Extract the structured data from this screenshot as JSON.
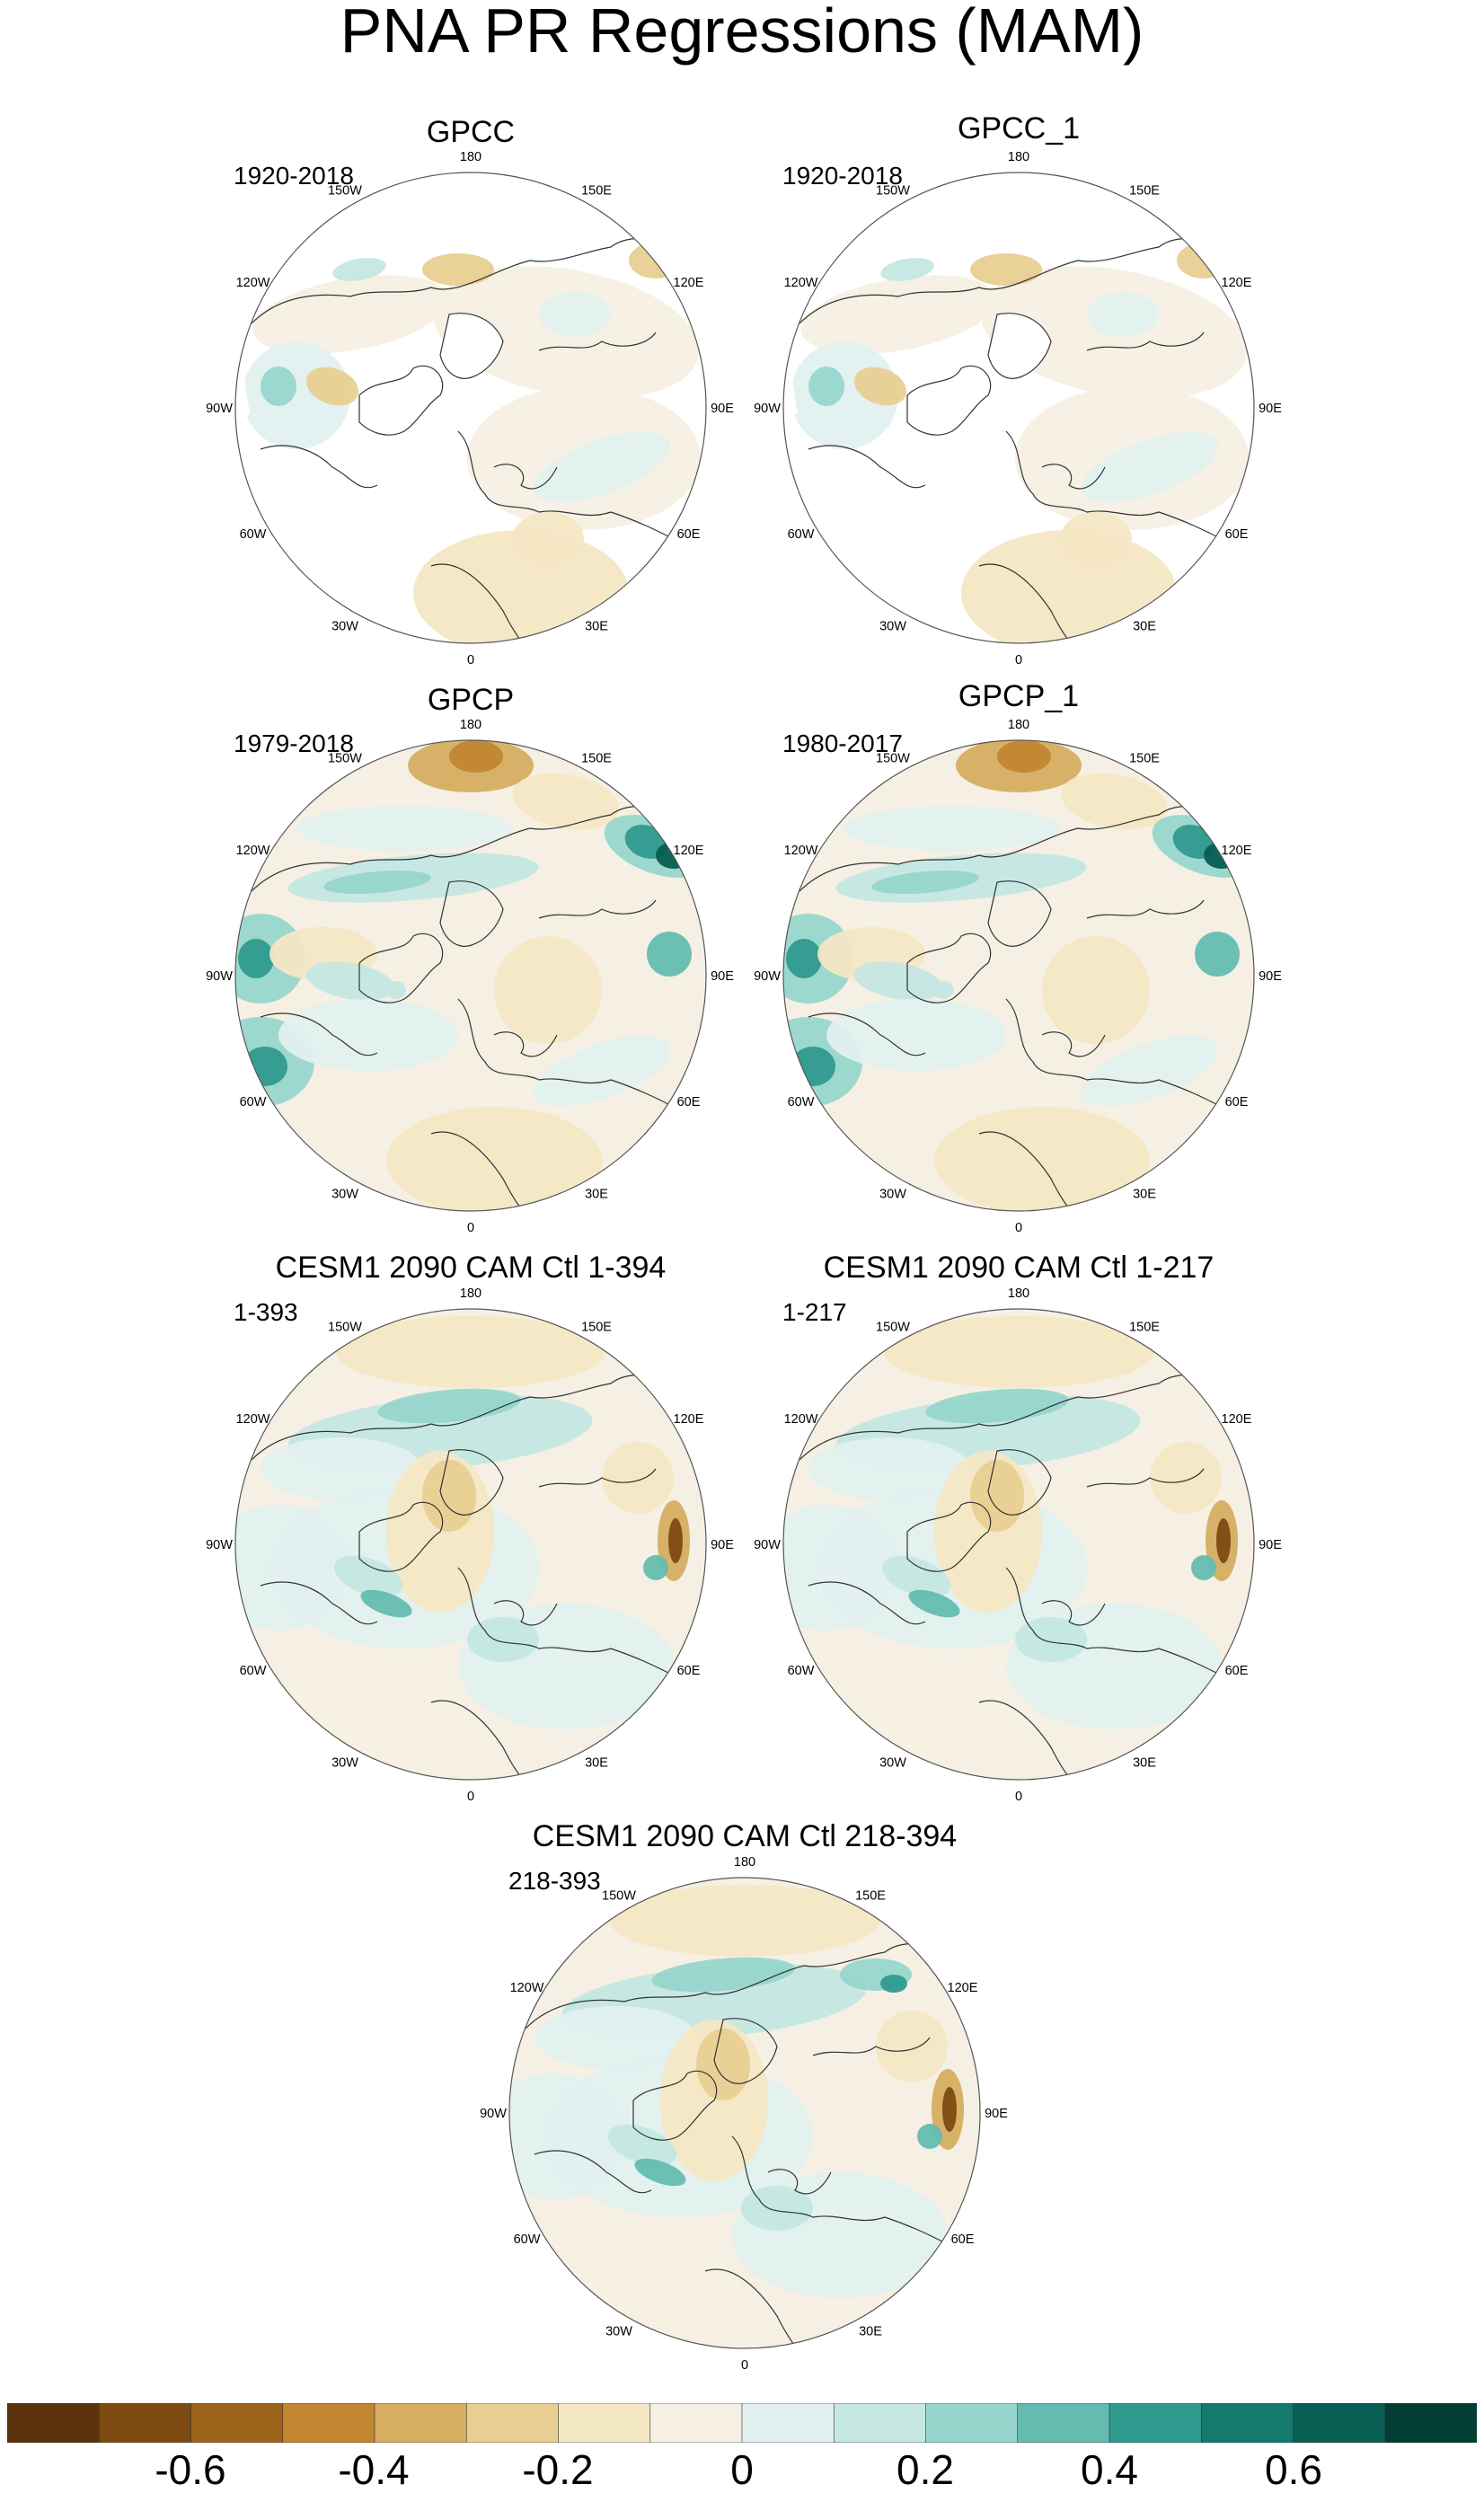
{
  "title": "PNA PR Regressions (MAM)",
  "longitude_labels": [
    "180",
    "150E",
    "120E",
    "90E",
    "60E",
    "30E",
    "0",
    "30W",
    "60W",
    "90W",
    "120W",
    "150W"
  ],
  "panels": [
    {
      "title": "GPCC",
      "period": "1920-2018"
    },
    {
      "title": "GPCC_1",
      "period": "1920-2018"
    },
    {
      "title": "GPCP",
      "period": "1979-2018"
    },
    {
      "title": "GPCP_1",
      "period": "1980-2017"
    },
    {
      "title": "CESM1 2090 CAM Ctl 1-394",
      "period": "1-393"
    },
    {
      "title": "CESM1 2090 CAM Ctl 1-217",
      "period": "1-217"
    },
    {
      "title": "CESM1 2090 CAM Ctl 218-394",
      "period": "218-393"
    }
  ],
  "colorbar": {
    "colors": [
      "#5b330d",
      "#7d4a12",
      "#9e631b",
      "#c1862f",
      "#d6ad62",
      "#e8cf91",
      "#f4e7c4",
      "#f5f0e3",
      "#e2f0ef",
      "#c4e7e2",
      "#97d6cc",
      "#64bcb0",
      "#2f9a8d",
      "#137a6d",
      "#075e52",
      "#023d33"
    ],
    "ticks": [
      {
        "value": -0.6,
        "label": "-0.6"
      },
      {
        "value": -0.4,
        "label": "-0.4"
      },
      {
        "value": -0.2,
        "label": "-0.2"
      },
      {
        "value": 0,
        "label": "0"
      },
      {
        "value": 0.2,
        "label": "0.2"
      },
      {
        "value": 0.4,
        "label": "0.4"
      },
      {
        "value": 0.6,
        "label": "0.6"
      }
    ],
    "range": [
      -0.8,
      0.8
    ]
  }
}
